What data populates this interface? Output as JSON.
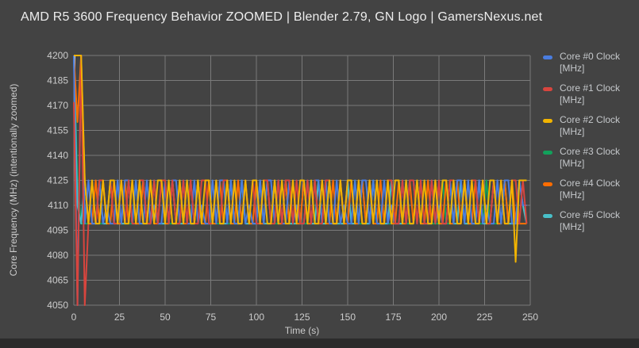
{
  "header": {
    "title": "AMD R5 3600 Frequency Behavior ZOOMED | Blender 2.79, GN Logo | GamersNexus.net"
  },
  "colors": {
    "background": "#434343",
    "gridline": "#7a7a7a",
    "title_text": "#ededed",
    "axis_text": "#cccccc",
    "legend_text": "#c5c8cb",
    "letterbox": "#2b2b2b",
    "axis_artifact": "#ffffff"
  },
  "chart_data": {
    "type": "line",
    "title": "AMD R5 3600 Frequency Behavior ZOOMED | Blender 2.79, GN Logo | GamersNexus.net",
    "xlabel": "Time (s)",
    "ylabel": "Core Frequency (MHz) (intentionally zoomed)",
    "xlim": [
      0,
      250
    ],
    "ylim": [
      4050,
      4200
    ],
    "x_ticks": [
      0,
      25,
      50,
      75,
      100,
      125,
      150,
      175,
      200,
      225,
      250
    ],
    "y_ticks": [
      4050,
      4065,
      4080,
      4095,
      4110,
      4125,
      4140,
      4155,
      4170,
      4185,
      4200
    ],
    "grid": true,
    "legend_position": "right",
    "x_start": 0,
    "x_step": 2,
    "axis_artifact": {
      "t": 0.4,
      "v_from": 4200,
      "v_to": 4172
    },
    "draw_order": [
      3,
      5,
      4,
      0,
      1,
      2
    ],
    "series": [
      {
        "name": "Core #0 Clock [MHz]",
        "color": "#4a7de0",
        "values": [
          4200,
          4050,
          4200,
          4099,
          4125,
          4099,
          4099,
          4125,
          4099,
          4110,
          4099,
          4099,
          4125,
          4099,
          4125,
          4125,
          4099,
          4125,
          4099,
          4099,
          4125,
          4099,
          4110,
          4099,
          4099,
          4125,
          4099,
          4125,
          4125,
          4099,
          4125,
          4099,
          4099,
          4125,
          4099,
          4110,
          4099,
          4099,
          4125,
          4099,
          4125,
          4125,
          4099,
          4125,
          4099,
          4099,
          4125,
          4099,
          4110,
          4099,
          4099,
          4125,
          4099,
          4125,
          4125,
          4099,
          4125,
          4099,
          4099,
          4125,
          4099,
          4110,
          4099,
          4099,
          4125,
          4099,
          4125,
          4125,
          4099,
          4125,
          4099,
          4099,
          4125,
          4099,
          4110,
          4099,
          4099,
          4125,
          4099,
          4125,
          4125,
          4099,
          4125,
          4099,
          4099,
          4125,
          4099,
          4110,
          4099,
          4099,
          4125,
          4099,
          4125,
          4125,
          4099,
          4125,
          4099,
          4099,
          4125,
          4099,
          4110,
          4099,
          4099,
          4125,
          4099,
          4125,
          4125,
          4099,
          4125,
          4099,
          4099,
          4125,
          4099,
          4110,
          4099,
          4099,
          4125,
          4099,
          4125,
          4125,
          4099,
          4099,
          4125,
          4110,
          4110
        ]
      },
      {
        "name": "Core #1 Clock [MHz]",
        "color": "#d8453e",
        "values": [
          4172,
          4050,
          4200,
          4050,
          4099,
          4125,
          4099,
          4125,
          4125,
          4099,
          4125,
          4099,
          4099,
          4125,
          4099,
          4125,
          4099,
          4099,
          4125,
          4125,
          4099,
          4099,
          4125,
          4099,
          4125,
          4125,
          4099,
          4125,
          4099,
          4099,
          4125,
          4099,
          4125,
          4099,
          4099,
          4125,
          4125,
          4099,
          4099,
          4125,
          4099,
          4125,
          4125,
          4099,
          4125,
          4099,
          4099,
          4125,
          4099,
          4125,
          4099,
          4099,
          4125,
          4125,
          4099,
          4099,
          4125,
          4099,
          4125,
          4125,
          4099,
          4125,
          4099,
          4099,
          4125,
          4099,
          4125,
          4099,
          4099,
          4125,
          4125,
          4099,
          4099,
          4125,
          4099,
          4125,
          4125,
          4099,
          4125,
          4099,
          4099,
          4125,
          4099,
          4125,
          4099,
          4099,
          4125,
          4125,
          4099,
          4099,
          4125,
          4099,
          4125,
          4125,
          4099,
          4125,
          4099,
          4099,
          4125,
          4099,
          4125,
          4099,
          4099,
          4125,
          4125,
          4099,
          4099,
          4125,
          4099,
          4125,
          4125,
          4099,
          4125,
          4099,
          4099,
          4125,
          4099,
          4125,
          4099,
          4099,
          4125,
          4125,
          4099,
          4125,
          4099
        ]
      },
      {
        "name": "Core #2 Clock [MHz]",
        "color": "#f2b400",
        "values": [
          4200,
          4200,
          4200,
          4125,
          4099,
          4125,
          4099,
          4099,
          4125,
          4099,
          4125,
          4125,
          4099,
          4125,
          4099,
          4099,
          4125,
          4099,
          4125,
          4099,
          4099,
          4125,
          4099,
          4125,
          4125,
          4099,
          4125,
          4099,
          4099,
          4125,
          4099,
          4125,
          4099,
          4099,
          4125,
          4099,
          4125,
          4125,
          4099,
          4125,
          4099,
          4099,
          4125,
          4099,
          4125,
          4099,
          4099,
          4125,
          4099,
          4125,
          4125,
          4099,
          4125,
          4099,
          4099,
          4125,
          4099,
          4125,
          4099,
          4099,
          4125,
          4099,
          4125,
          4125,
          4099,
          4125,
          4099,
          4099,
          4125,
          4099,
          4125,
          4099,
          4099,
          4125,
          4099,
          4125,
          4125,
          4099,
          4125,
          4099,
          4099,
          4125,
          4099,
          4125,
          4099,
          4099,
          4125,
          4099,
          4125,
          4125,
          4099,
          4125,
          4099,
          4099,
          4125,
          4099,
          4125,
          4099,
          4099,
          4125,
          4099,
          4125,
          4125,
          4099,
          4125,
          4099,
          4099,
          4125,
          4099,
          4125,
          4099,
          4099,
          4125,
          4099,
          4125,
          4125,
          4099,
          4125,
          4099,
          4099,
          4125,
          4076,
          4125,
          4125,
          4125
        ]
      },
      {
        "name": "Core #3 Clock [MHz]",
        "color": "#12a15b",
        "values": [
          4200,
          4125,
          4099,
          4099,
          4099,
          4125,
          4099,
          4099,
          4099,
          4099,
          4125,
          4099,
          4099,
          4099,
          4099,
          4099,
          4099,
          4125,
          4099,
          4099,
          4099,
          4099,
          4125,
          4099,
          4099,
          4099,
          4099,
          4099,
          4099,
          4125,
          4099,
          4099,
          4099,
          4099,
          4125,
          4099,
          4099,
          4099,
          4099,
          4099,
          4099,
          4125,
          4099,
          4099,
          4099,
          4099,
          4125,
          4099,
          4099,
          4099,
          4099,
          4099,
          4099,
          4125,
          4099,
          4099,
          4099,
          4099,
          4125,
          4099,
          4099,
          4099,
          4099,
          4099,
          4099,
          4125,
          4099,
          4099,
          4099,
          4099,
          4125,
          4099,
          4099,
          4099,
          4099,
          4099,
          4099,
          4125,
          4099,
          4099,
          4099,
          4099,
          4125,
          4099,
          4099,
          4099,
          4099,
          4099,
          4099,
          4125,
          4099,
          4099,
          4099,
          4099,
          4125,
          4099,
          4099,
          4099,
          4099,
          4099,
          4099,
          4125,
          4099,
          4099,
          4099,
          4099,
          4125,
          4099,
          4099,
          4099,
          4099,
          4099,
          4099,
          4125,
          4099,
          4099,
          4099,
          4099,
          4125,
          4099,
          4099,
          4099,
          4099,
          4099,
          4099
        ]
      },
      {
        "name": "Core #4 Clock [MHz]",
        "color": "#ff6d00",
        "values": [
          4200,
          4160,
          4200,
          4125,
          4099,
          4099,
          4125,
          4099,
          4125,
          4099,
          4099,
          4125,
          4099,
          4099,
          4125,
          4099,
          4125,
          4099,
          4099,
          4125,
          4099,
          4125,
          4099,
          4099,
          4125,
          4099,
          4099,
          4125,
          4099,
          4125,
          4099,
          4099,
          4125,
          4099,
          4125,
          4099,
          4099,
          4125,
          4099,
          4099,
          4125,
          4099,
          4125,
          4099,
          4099,
          4125,
          4099,
          4125,
          4099,
          4099,
          4125,
          4099,
          4099,
          4125,
          4099,
          4125,
          4099,
          4099,
          4125,
          4099,
          4125,
          4099,
          4099,
          4125,
          4099,
          4099,
          4125,
          4099,
          4125,
          4099,
          4099,
          4125,
          4099,
          4125,
          4099,
          4099,
          4125,
          4099,
          4099,
          4125,
          4099,
          4125,
          4099,
          4099,
          4125,
          4099,
          4125,
          4099,
          4099,
          4125,
          4099,
          4099,
          4125,
          4099,
          4125,
          4099,
          4099,
          4125,
          4099,
          4125,
          4099,
          4099,
          4125,
          4099,
          4099,
          4125,
          4099,
          4125,
          4099,
          4099,
          4125,
          4099,
          4125,
          4099,
          4099,
          4125,
          4099,
          4099,
          4125,
          4099,
          4125,
          4099,
          4099,
          4099,
          4099
        ]
      },
      {
        "name": "Core #5 Clock [MHz]",
        "color": "#48bfc8",
        "values": [
          4200,
          4110,
          4099,
          4125,
          4099,
          4099,
          4099,
          4125,
          4099,
          4099,
          4125,
          4099,
          4099,
          4099,
          4099,
          4125,
          4099,
          4099,
          4099,
          4125,
          4099,
          4099,
          4125,
          4099,
          4099,
          4099,
          4099,
          4125,
          4099,
          4099,
          4099,
          4125,
          4099,
          4099,
          4125,
          4099,
          4099,
          4099,
          4099,
          4125,
          4099,
          4099,
          4099,
          4125,
          4099,
          4099,
          4125,
          4099,
          4099,
          4099,
          4099,
          4125,
          4099,
          4099,
          4099,
          4125,
          4099,
          4099,
          4125,
          4099,
          4099,
          4099,
          4099,
          4125,
          4099,
          4099,
          4099,
          4125,
          4099,
          4099,
          4125,
          4099,
          4099,
          4099,
          4099,
          4125,
          4099,
          4099,
          4099,
          4125,
          4099,
          4099,
          4125,
          4099,
          4099,
          4099,
          4099,
          4125,
          4099,
          4099,
          4099,
          4125,
          4099,
          4099,
          4125,
          4099,
          4099,
          4099,
          4099,
          4125,
          4099,
          4099,
          4099,
          4125,
          4099,
          4099,
          4125,
          4099,
          4099,
          4099,
          4099,
          4125,
          4099,
          4099,
          4099,
          4125,
          4099,
          4099,
          4125,
          4099,
          4099,
          4099,
          4125,
          4110,
          4099
        ]
      }
    ]
  }
}
